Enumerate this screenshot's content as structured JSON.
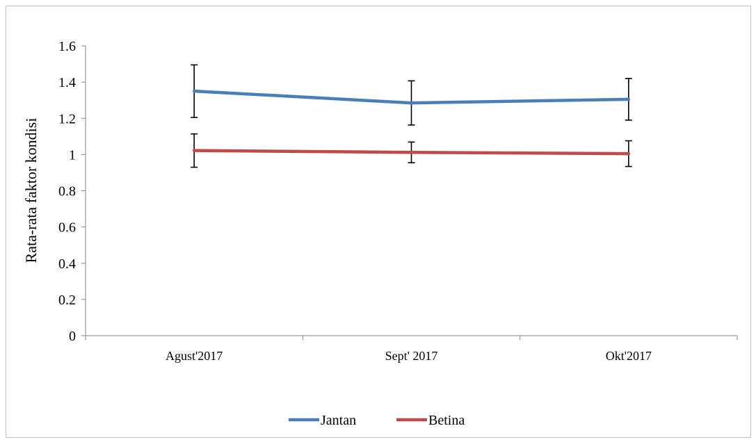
{
  "chart_data": {
    "type": "line",
    "categories": [
      "Agust'2017",
      "Sept' 2017",
      "Okt'2017"
    ],
    "series": [
      {
        "name": "Jantan",
        "color": "#4a7ebb",
        "values": [
          1.35,
          1.285,
          1.305
        ],
        "error": [
          0.145,
          0.122,
          0.115
        ]
      },
      {
        "name": "Betina",
        "color": "#be4b48",
        "values": [
          1.022,
          1.012,
          1.005
        ],
        "error": [
          0.092,
          0.057,
          0.071
        ]
      }
    ],
    "ylabel": "Rata-rata faktor kondisi",
    "ylim": [
      0,
      1.6
    ],
    "yticks": [
      "0",
      "0.2",
      "0.4",
      "0.6",
      "0.8",
      "1",
      "1.2",
      "1.4",
      "1.6"
    ],
    "grid": false,
    "legend_position": "bottom",
    "error_bar_color": "#000000"
  }
}
